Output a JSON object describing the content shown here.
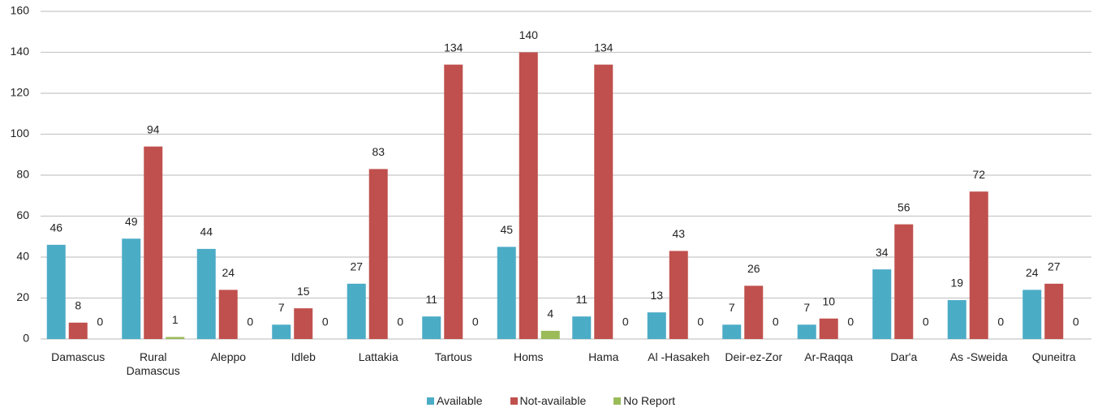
{
  "chart_data": {
    "type": "bar",
    "categories": [
      "Damascus",
      "Rural Damascus",
      "Aleppo",
      "Idleb",
      "Lattakia",
      "Tartous",
      "Homs",
      "Hama",
      "Al -Hasakeh",
      "Deir-ez-Zor",
      "Ar-Raqqa",
      "Dar'a",
      "As -Sweida",
      "Quneitra"
    ],
    "series": [
      {
        "name": "Available",
        "color": "#4bacc6",
        "values": [
          46,
          49,
          44,
          7,
          27,
          11,
          45,
          11,
          13,
          7,
          7,
          34,
          19,
          24
        ]
      },
      {
        "name": "Not-available",
        "color": "#c0504d",
        "values": [
          8,
          94,
          24,
          15,
          83,
          134,
          140,
          134,
          43,
          26,
          10,
          56,
          72,
          27
        ]
      },
      {
        "name": "No Report",
        "color": "#9bbb59",
        "values": [
          0,
          1,
          0,
          0,
          0,
          0,
          4,
          0,
          0,
          0,
          0,
          0,
          0,
          0
        ]
      }
    ],
    "ylim": [
      0,
      160
    ],
    "yticks": [
      0,
      20,
      40,
      60,
      80,
      100,
      120,
      140,
      160
    ],
    "grid": true,
    "legend": "bottom"
  }
}
